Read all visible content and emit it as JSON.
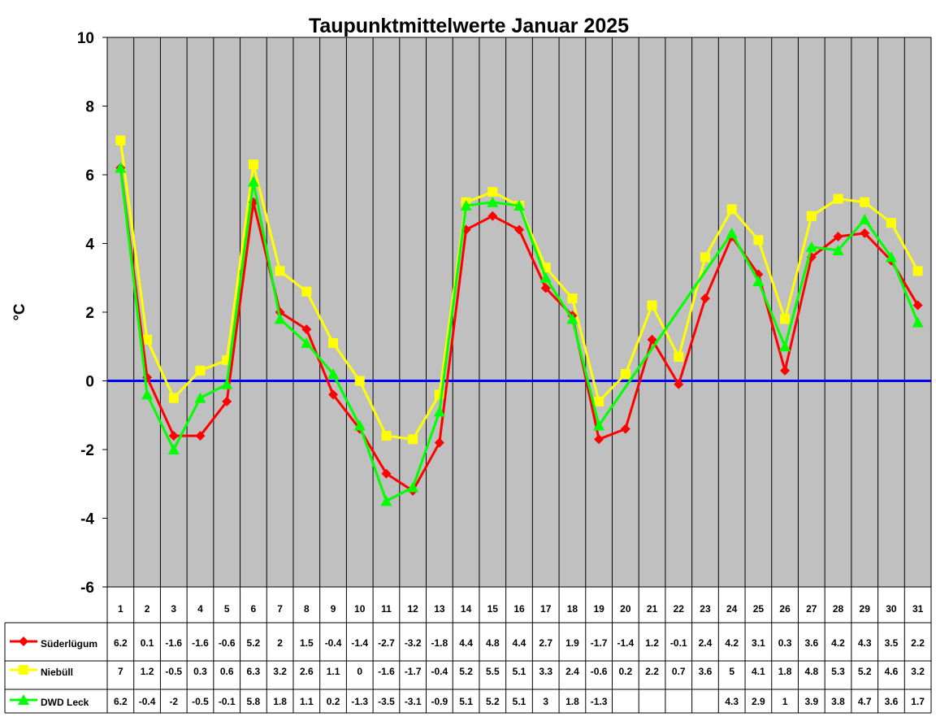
{
  "chart_data": {
    "type": "line",
    "title": "Taupunktmittelwerte Januar 2025",
    "ylabel": "°C",
    "xlabel": "",
    "ylim": [
      -6,
      10
    ],
    "yticks": [
      10,
      8,
      6,
      4,
      2,
      0,
      -2,
      -4,
      -6
    ],
    "categories": [
      "1",
      "2",
      "3",
      "4",
      "5",
      "6",
      "7",
      "8",
      "9",
      "10",
      "11",
      "12",
      "13",
      "14",
      "15",
      "16",
      "17",
      "18",
      "19",
      "20",
      "21",
      "22",
      "23",
      "24",
      "25",
      "26",
      "27",
      "28",
      "29",
      "30",
      "31"
    ],
    "grid": true,
    "zero_line": true,
    "legend_placement": "data table, left",
    "series": [
      {
        "name": "Süderlügum",
        "color": "#ff0000",
        "marker": "diamond",
        "values": [
          6.2,
          0.1,
          -1.6,
          -1.6,
          -0.6,
          5.2,
          2,
          1.5,
          -0.4,
          -1.4,
          -2.7,
          -3.2,
          -1.8,
          4.4,
          4.8,
          4.4,
          2.7,
          1.9,
          -1.7,
          -1.4,
          1.2,
          -0.1,
          2.4,
          4.2,
          3.1,
          0.3,
          3.6,
          4.2,
          4.3,
          3.5,
          2.2
        ]
      },
      {
        "name": "Niebüll",
        "color": "#ffff00",
        "marker": "square",
        "values": [
          7,
          1.2,
          -0.5,
          0.3,
          0.6,
          6.3,
          3.2,
          2.6,
          1.1,
          0,
          -1.6,
          -1.7,
          -0.4,
          5.2,
          5.5,
          5.1,
          3.3,
          2.4,
          -0.6,
          0.2,
          2.2,
          0.7,
          3.6,
          5,
          4.1,
          1.8,
          4.8,
          5.3,
          5.2,
          4.6,
          3.2
        ]
      },
      {
        "name": "DWD Leck",
        "color": "#00ff00",
        "marker": "triangle",
        "values": [
          6.2,
          -0.4,
          -2,
          -0.5,
          -0.1,
          5.8,
          1.8,
          1.1,
          0.2,
          -1.3,
          -3.5,
          -3.1,
          -0.9,
          5.1,
          5.2,
          5.1,
          3,
          1.8,
          -1.3,
          null,
          null,
          null,
          null,
          4.3,
          2.9,
          1,
          3.9,
          3.8,
          4.7,
          3.6,
          1.7
        ]
      }
    ],
    "colors": {
      "plot_background": "#c0c0c0",
      "zero_line": "#0000ff",
      "grid": "#000000"
    }
  }
}
